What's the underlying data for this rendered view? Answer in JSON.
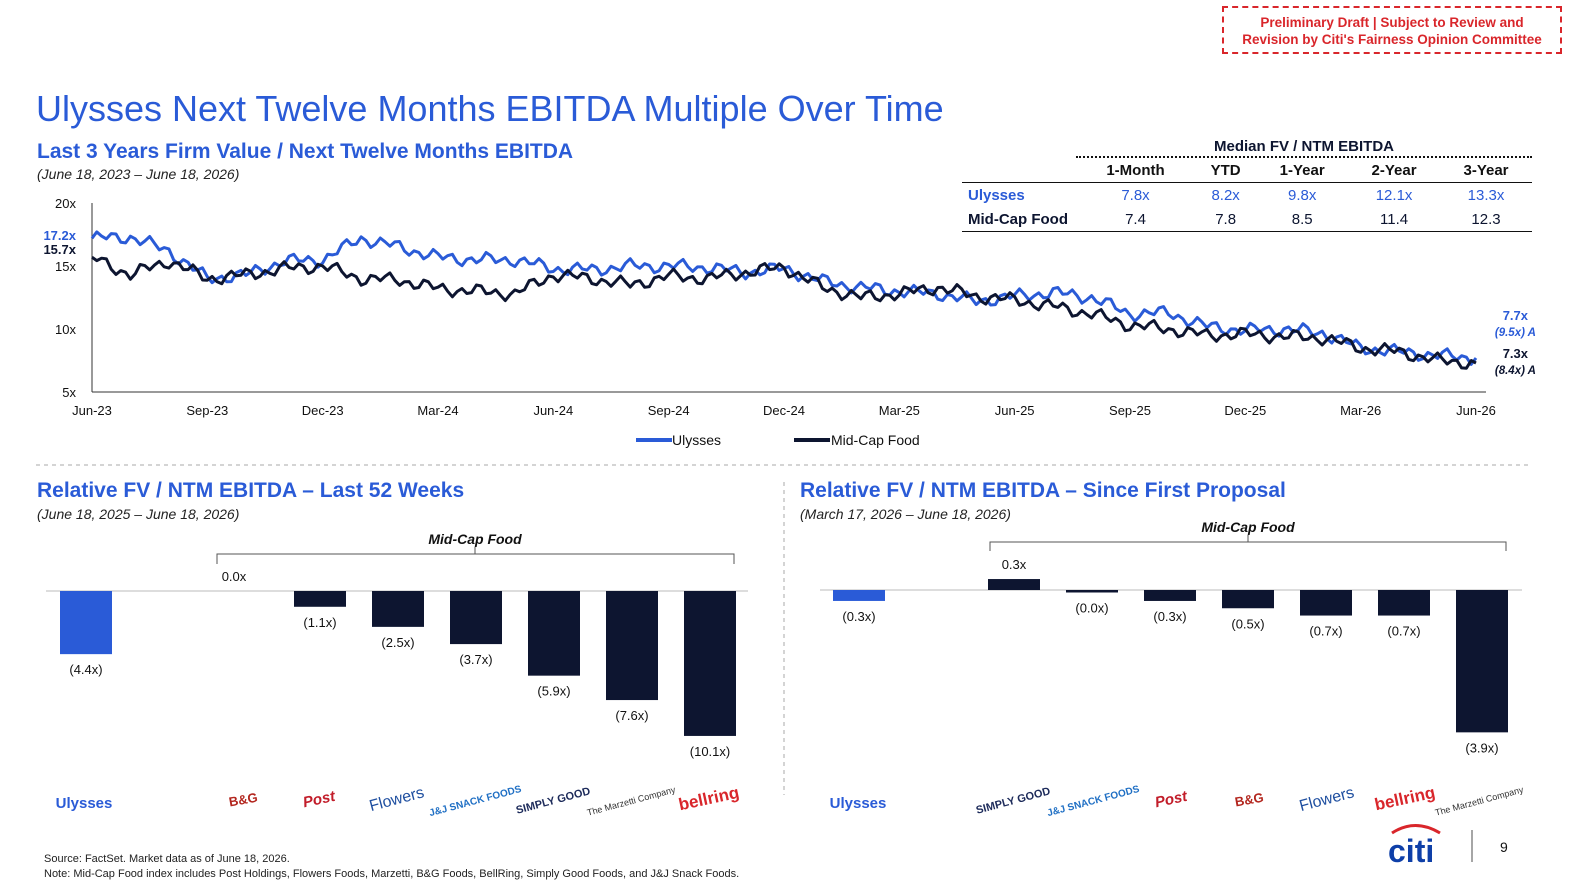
{
  "draft_note": [
    "Preliminary Draft | Subject to Review and",
    "Revision by Citi's Fairness Opinion Committee"
  ],
  "title": "Ulysses Next Twelve Months EBITDA Multiple Over Time",
  "top_chart": {
    "subtitle": "Last 3 Years Firm Value / Next Twelve Months EBITDA",
    "date_range": "(June 18, 2023 – June 18, 2026)",
    "start_labels": {
      "ulysses": "17.2x",
      "midcap": "15.7x"
    },
    "end_labels": {
      "ulysses": "7.7x",
      "ulysses_avg": "(9.5x) A",
      "midcap": "7.3x",
      "midcap_avg": "(8.4x) A"
    }
  },
  "median_table": {
    "title": "Median FV / NTM EBITDA",
    "columns": [
      "1-Month",
      "YTD",
      "1-Year",
      "2-Year",
      "3-Year"
    ],
    "rows": [
      {
        "name": "Ulysses",
        "values": [
          "7.8x",
          "8.2x",
          "9.8x",
          "12.1x",
          "13.3x"
        ]
      },
      {
        "name": "Mid-Cap Food",
        "values": [
          "7.4",
          "7.8",
          "8.5",
          "11.4",
          "12.3"
        ]
      }
    ]
  },
  "left_panel": {
    "subtitle": "Relative FV / NTM EBITDA – Last 52 Weeks",
    "date_range": "(June 18, 2025 – June 18, 2026)",
    "bracket_label": "Mid-Cap Food",
    "ulysses_label": "Ulysses"
  },
  "right_panel": {
    "subtitle": "Relative FV / NTM EBITDA – Since First Proposal",
    "date_range": "(March 17, 2026 – June 18, 2026)",
    "bracket_label": "Mid-Cap Food",
    "ulysses_label": "Ulysses"
  },
  "footer": {
    "source": "Source: FactSet. Market data as of June 18, 2026.",
    "note": "Note: Mid-Cap Food index includes Post Holdings, Flowers Foods, Marzetti, B&G Foods, BellRing, Simply Good Foods, and J&J Snack Foods.",
    "brand": "citi",
    "page_number": "9"
  },
  "colors": {
    "ulysses": "#2a5bd7",
    "midcap": "#0d1530",
    "draft": "#d9262b"
  },
  "chart_data": [
    {
      "type": "line",
      "x_ticks": [
        "Jun-23",
        "Sep-23",
        "Dec-23",
        "Mar-24",
        "Jun-24",
        "Sep-24",
        "Dec-24",
        "Mar-25",
        "Jun-25",
        "Sep-25",
        "Dec-25",
        "Mar-26",
        "Jun-26"
      ],
      "y_ticks": [
        "5x",
        "10x",
        "15x",
        "20x"
      ],
      "ylim": [
        5,
        20
      ],
      "legend": [
        "Ulysses",
        "Mid-Cap Food"
      ],
      "legend_position": "bottom",
      "series": [
        {
          "name": "Ulysses",
          "x": [
            "Jun-23",
            "Jul-23",
            "Aug-23",
            "Sep-23",
            "Oct-23",
            "Nov-23",
            "Dec-23",
            "Jan-24",
            "Feb-24",
            "Mar-24",
            "Apr-24",
            "May-24",
            "Jun-24",
            "Jul-24",
            "Aug-24",
            "Sep-24",
            "Oct-24",
            "Nov-24",
            "Dec-24",
            "Jan-25",
            "Feb-25",
            "Mar-25",
            "Apr-25",
            "May-25",
            "Jun-25",
            "Jul-25",
            "Aug-25",
            "Sep-25",
            "Oct-25",
            "Nov-25",
            "Dec-25",
            "Jan-26",
            "Feb-26",
            "Mar-26",
            "Apr-26",
            "May-26",
            "Jun-26"
          ],
          "values": [
            17.2,
            17.3,
            16.2,
            14.0,
            14.3,
            15.4,
            15.5,
            17.2,
            16.5,
            15.7,
            15.5,
            15.5,
            14.8,
            14.7,
            15.0,
            15.0,
            14.9,
            14.5,
            14.8,
            13.8,
            13.3,
            13.0,
            12.8,
            12.2,
            12.6,
            12.9,
            12.5,
            11.2,
            11.3,
            10.2,
            9.9,
            10.0,
            9.7,
            8.5,
            8.2,
            7.9,
            7.7
          ]
        },
        {
          "name": "Mid-Cap Food",
          "x": [
            "Jun-23",
            "Jul-23",
            "Aug-23",
            "Sep-23",
            "Oct-23",
            "Nov-23",
            "Dec-23",
            "Jan-24",
            "Feb-24",
            "Mar-24",
            "Apr-24",
            "May-24",
            "Jun-24",
            "Jul-24",
            "Aug-24",
            "Sep-24",
            "Oct-24",
            "Nov-24",
            "Dec-24",
            "Jan-25",
            "Feb-25",
            "Mar-25",
            "Apr-25",
            "May-25",
            "Jun-25",
            "Jul-25",
            "Aug-25",
            "Sep-25",
            "Oct-25",
            "Nov-25",
            "Dec-25",
            "Jan-26",
            "Feb-26",
            "Mar-26",
            "Apr-26",
            "May-26",
            "Jun-26"
          ],
          "values": [
            15.7,
            14.3,
            15.4,
            14.0,
            14.3,
            14.8,
            15.0,
            14.0,
            13.9,
            13.2,
            13.0,
            12.8,
            14.3,
            14.0,
            13.5,
            14.2,
            14.0,
            14.5,
            14.9,
            13.3,
            12.5,
            12.8,
            13.3,
            12.6,
            12.3,
            11.8,
            11.2,
            10.3,
            10.0,
            9.5,
            9.6,
            9.4,
            9.3,
            8.5,
            8.2,
            7.5,
            7.3
          ]
        }
      ]
    },
    {
      "type": "bar",
      "title": "Relative FV / NTM EBITDA – Last 52 Weeks",
      "categories": [
        "Ulysses",
        "B&G Foods",
        "Post",
        "Flowers Foods",
        "J&J Snack Foods",
        "Simply Good Foods",
        "The Marzetti Company",
        "BellRing"
      ],
      "values": [
        -4.4,
        0.0,
        -1.1,
        -2.5,
        -3.7,
        -5.9,
        -7.6,
        -10.1
      ],
      "labels": [
        "(4.4x)",
        "0.0x",
        "(1.1x)",
        "(2.5x)",
        "(3.7x)",
        "(5.9x)",
        "(7.6x)",
        "(10.1x)"
      ],
      "ylim": [
        -10.1,
        0
      ]
    },
    {
      "type": "bar",
      "title": "Relative FV / NTM EBITDA – Since First Proposal",
      "categories": [
        "Ulysses",
        "Simply Good Foods",
        "J&J Snack Foods",
        "Post",
        "B&G Foods",
        "Flowers Foods",
        "BellRing",
        "The Marzetti Company"
      ],
      "values": [
        -0.3,
        0.3,
        -0.02,
        -0.3,
        -0.5,
        -0.7,
        -0.7,
        -3.9
      ],
      "labels": [
        "(0.3x)",
        "0.3x",
        "(0.0x)",
        "(0.3x)",
        "(0.5x)",
        "(0.7x)",
        "(0.7x)",
        "(3.9x)"
      ],
      "ylim": [
        -3.9,
        0.3
      ]
    }
  ],
  "logos": {
    "left": [
      "B&G",
      "Post",
      "Flowers",
      "J&J SNACK FOODS",
      "SIMPLY GOOD",
      "The Marzetti Company",
      "bellring"
    ],
    "right": [
      "SIMPLY GOOD",
      "J&J SNACK FOODS",
      "Post",
      "B&G",
      "Flowers",
      "bellring",
      "The Marzetti Company"
    ]
  }
}
